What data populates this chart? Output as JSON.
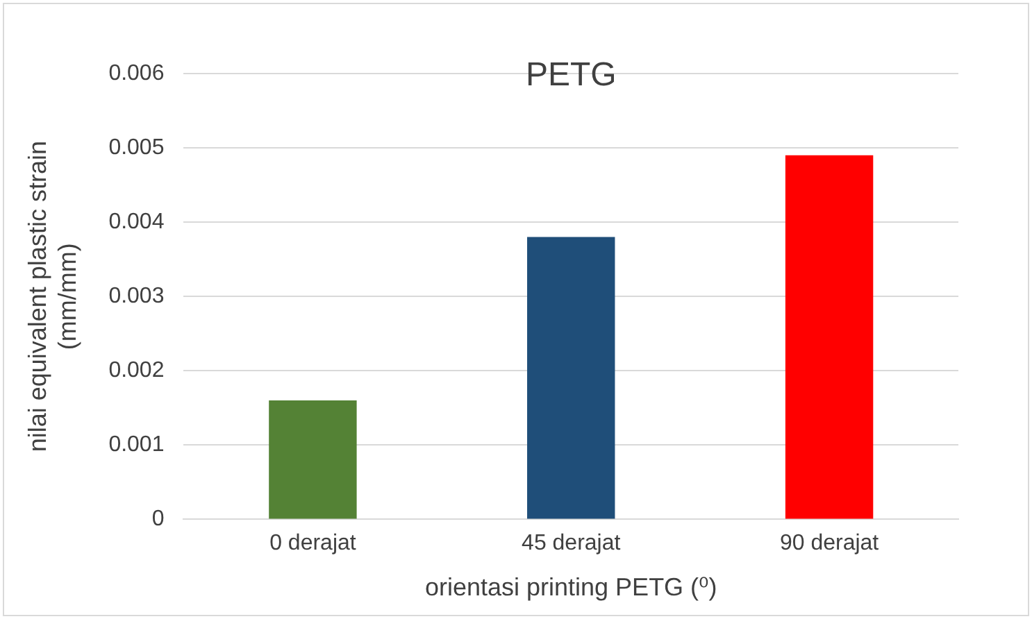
{
  "chart_data": {
    "type": "bar",
    "title": "PETG",
    "xlabel": "orientasi printing PETG (⁰)",
    "ylabel": "nilai equivalent plastic strain\n(mm/mm)",
    "categories": [
      "0 derajat",
      "45 derajat",
      "90 derajat"
    ],
    "values": [
      0.0016,
      0.0038,
      0.0049
    ],
    "colors": [
      "#548235",
      "#1f4e79",
      "#ff0000"
    ],
    "ylim": [
      0,
      0.006
    ],
    "yticks": [
      0,
      0.001,
      0.002,
      0.003,
      0.004,
      0.005,
      0.006
    ],
    "grid": "y",
    "legend": false
  }
}
